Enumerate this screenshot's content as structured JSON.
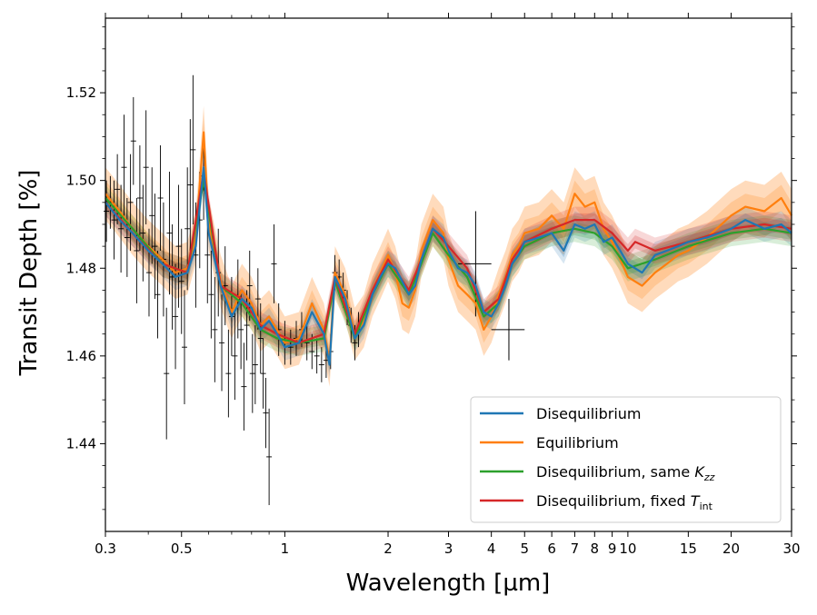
{
  "chart_data": {
    "type": "line",
    "xlabel": "Wavelength [µm]",
    "ylabel": "Transit Depth [%]",
    "xscale": "log",
    "xlim": [
      0.3,
      30
    ],
    "ylim": [
      1.42,
      1.537
    ],
    "x_ticks": [
      {
        "value": 0.3,
        "label": "0.3"
      },
      {
        "value": 0.5,
        "label": "0.5"
      },
      {
        "value": 1,
        "label": "1"
      },
      {
        "value": 2,
        "label": "2"
      },
      {
        "value": 3,
        "label": "3"
      },
      {
        "value": 4,
        "label": "4"
      },
      {
        "value": 5,
        "label": "5"
      },
      {
        "value": 6,
        "label": "6"
      },
      {
        "value": 7,
        "label": "7"
      },
      {
        "value": 8,
        "label": "8"
      },
      {
        "value": 9,
        "label": "9"
      },
      {
        "value": 10,
        "label": "10"
      },
      {
        "value": 15,
        "label": "15"
      },
      {
        "value": 20,
        "label": "20"
      },
      {
        "value": 30,
        "label": "30"
      }
    ],
    "y_ticks": [
      {
        "value": 1.44,
        "label": "1.44"
      },
      {
        "value": 1.46,
        "label": "1.46"
      },
      {
        "value": 1.48,
        "label": "1.48"
      },
      {
        "value": 1.5,
        "label": "1.50"
      },
      {
        "value": 1.52,
        "label": "1.52"
      }
    ],
    "legend": {
      "placement": "lower-right",
      "entries": [
        {
          "label": "Disequilibrium",
          "color": "#1f77b4"
        },
        {
          "label": "Equilibrium",
          "color": "#ff7f0e"
        },
        {
          "label": "Disequilibrium, same ",
          "math": "K",
          "sub": "zz",
          "color": "#2ca02c"
        },
        {
          "label": "Disequilibrium, fixed ",
          "math": "T",
          "sub": "int",
          "color": "#d62728"
        }
      ]
    },
    "series": [
      {
        "name": "Disequilibrium",
        "color": "#1f77b4",
        "band": 0.003,
        "x": [
          0.3,
          0.33,
          0.36,
          0.4,
          0.44,
          0.48,
          0.52,
          0.55,
          0.58,
          0.6,
          0.65,
          0.7,
          0.75,
          0.8,
          0.85,
          0.9,
          0.95,
          1.0,
          1.1,
          1.2,
          1.3,
          1.35,
          1.4,
          1.5,
          1.6,
          1.7,
          1.8,
          1.9,
          2.0,
          2.1,
          2.2,
          2.3,
          2.4,
          2.5,
          2.7,
          2.9,
          3.0,
          3.2,
          3.4,
          3.6,
          3.8,
          4.0,
          4.2,
          4.4,
          4.6,
          4.8,
          5.0,
          5.5,
          6.0,
          6.5,
          7.0,
          7.5,
          8.0,
          8.5,
          9.0,
          9.5,
          10,
          11,
          12,
          13,
          14,
          15,
          17,
          20,
          22,
          25,
          28,
          30
        ],
        "y": [
          1.495,
          1.491,
          1.488,
          1.484,
          1.481,
          1.478,
          1.479,
          1.485,
          1.503,
          1.488,
          1.476,
          1.469,
          1.473,
          1.471,
          1.466,
          1.468,
          1.465,
          1.462,
          1.463,
          1.47,
          1.465,
          1.458,
          1.478,
          1.473,
          1.464,
          1.467,
          1.474,
          1.478,
          1.481,
          1.48,
          1.477,
          1.474,
          1.476,
          1.482,
          1.489,
          1.487,
          1.484,
          1.48,
          1.479,
          1.476,
          1.47,
          1.469,
          1.472,
          1.476,
          1.481,
          1.483,
          1.486,
          1.487,
          1.488,
          1.484,
          1.49,
          1.489,
          1.49,
          1.486,
          1.487,
          1.484,
          1.481,
          1.479,
          1.483,
          1.484,
          1.485,
          1.486,
          1.487,
          1.489,
          1.491,
          1.489,
          1.49,
          1.488
        ]
      },
      {
        "name": "Equilibrium",
        "color": "#ff7f0e",
        "band": 0.006,
        "x": [
          0.3,
          0.33,
          0.36,
          0.4,
          0.44,
          0.48,
          0.52,
          0.55,
          0.58,
          0.6,
          0.65,
          0.7,
          0.75,
          0.8,
          0.85,
          0.9,
          0.95,
          1.0,
          1.1,
          1.2,
          1.3,
          1.35,
          1.4,
          1.5,
          1.6,
          1.7,
          1.8,
          1.9,
          2.0,
          2.1,
          2.2,
          2.3,
          2.4,
          2.5,
          2.7,
          2.9,
          3.0,
          3.2,
          3.4,
          3.6,
          3.8,
          4.0,
          4.2,
          4.4,
          4.6,
          4.8,
          5.0,
          5.5,
          6.0,
          6.5,
          7.0,
          7.5,
          8.0,
          8.5,
          9.0,
          9.5,
          10,
          11,
          12,
          13,
          14,
          15,
          17,
          20,
          22,
          25,
          28,
          30
        ],
        "y": [
          1.497,
          1.493,
          1.489,
          1.485,
          1.482,
          1.479,
          1.48,
          1.487,
          1.511,
          1.49,
          1.477,
          1.47,
          1.475,
          1.472,
          1.467,
          1.469,
          1.466,
          1.463,
          1.464,
          1.472,
          1.466,
          1.459,
          1.479,
          1.474,
          1.465,
          1.468,
          1.475,
          1.479,
          1.483,
          1.479,
          1.472,
          1.471,
          1.475,
          1.484,
          1.491,
          1.488,
          1.482,
          1.476,
          1.474,
          1.472,
          1.466,
          1.469,
          1.474,
          1.478,
          1.483,
          1.485,
          1.488,
          1.489,
          1.492,
          1.489,
          1.497,
          1.494,
          1.495,
          1.489,
          1.486,
          1.482,
          1.478,
          1.476,
          1.479,
          1.481,
          1.483,
          1.484,
          1.487,
          1.492,
          1.494,
          1.493,
          1.496,
          1.492
        ]
      },
      {
        "name": "Disequilibrium, same Kzz",
        "color": "#2ca02c",
        "band": 0.003,
        "x": [
          0.3,
          0.36,
          0.44,
          0.52,
          0.58,
          0.65,
          0.75,
          0.85,
          0.95,
          1.1,
          1.3,
          1.4,
          1.6,
          1.8,
          2.0,
          2.3,
          2.5,
          2.7,
          3.0,
          3.4,
          3.8,
          4.2,
          4.6,
          5.0,
          6.0,
          7.0,
          8.0,
          9.0,
          10,
          12,
          15,
          20,
          25,
          30
        ],
        "y": [
          1.496,
          1.489,
          1.481,
          1.479,
          1.5,
          1.476,
          1.472,
          1.466,
          1.464,
          1.463,
          1.464,
          1.477,
          1.464,
          1.474,
          1.481,
          1.474,
          1.481,
          1.488,
          1.483,
          1.478,
          1.469,
          1.472,
          1.481,
          1.485,
          1.488,
          1.489,
          1.488,
          1.485,
          1.48,
          1.482,
          1.485,
          1.488,
          1.489,
          1.488
        ]
      },
      {
        "name": "Disequilibrium, fixed Tint",
        "color": "#d62728",
        "band": 0.003,
        "x": [
          0.3,
          0.36,
          0.44,
          0.52,
          0.58,
          0.65,
          0.75,
          0.85,
          0.95,
          1.1,
          1.3,
          1.4,
          1.6,
          1.8,
          2.0,
          2.3,
          2.5,
          2.7,
          3.0,
          3.4,
          3.8,
          4.2,
          4.6,
          5.0,
          6.0,
          7.0,
          8.0,
          9.0,
          10,
          10.5,
          12,
          15,
          20,
          25,
          30
        ],
        "y": [
          1.495,
          1.488,
          1.481,
          1.479,
          1.502,
          1.476,
          1.473,
          1.467,
          1.465,
          1.463,
          1.465,
          1.478,
          1.465,
          1.475,
          1.482,
          1.475,
          1.482,
          1.489,
          1.485,
          1.48,
          1.47,
          1.473,
          1.482,
          1.486,
          1.489,
          1.491,
          1.491,
          1.488,
          1.484,
          1.486,
          1.484,
          1.486,
          1.489,
          1.49,
          1.489
        ]
      }
    ],
    "observations": {
      "name": "Data",
      "color": "#000000",
      "points": [
        {
          "x": 0.302,
          "y": 1.493,
          "err": 0.007
        },
        {
          "x": 0.31,
          "y": 1.495,
          "err": 0.006
        },
        {
          "x": 0.318,
          "y": 1.491,
          "err": 0.009
        },
        {
          "x": 0.325,
          "y": 1.498,
          "err": 0.008
        },
        {
          "x": 0.333,
          "y": 1.489,
          "err": 0.01
        },
        {
          "x": 0.34,
          "y": 1.503,
          "err": 0.012
        },
        {
          "x": 0.347,
          "y": 1.487,
          "err": 0.009
        },
        {
          "x": 0.355,
          "y": 1.495,
          "err": 0.011
        },
        {
          "x": 0.362,
          "y": 1.509,
          "err": 0.01
        },
        {
          "x": 0.37,
          "y": 1.484,
          "err": 0.012
        },
        {
          "x": 0.378,
          "y": 1.496,
          "err": 0.012
        },
        {
          "x": 0.386,
          "y": 1.488,
          "err": 0.011
        },
        {
          "x": 0.394,
          "y": 1.503,
          "err": 0.013
        },
        {
          "x": 0.402,
          "y": 1.479,
          "err": 0.01
        },
        {
          "x": 0.41,
          "y": 1.492,
          "err": 0.011
        },
        {
          "x": 0.418,
          "y": 1.485,
          "err": 0.012
        },
        {
          "x": 0.426,
          "y": 1.474,
          "err": 0.01
        },
        {
          "x": 0.434,
          "y": 1.496,
          "err": 0.012
        },
        {
          "x": 0.443,
          "y": 1.482,
          "err": 0.013
        },
        {
          "x": 0.452,
          "y": 1.456,
          "err": 0.015
        },
        {
          "x": 0.461,
          "y": 1.488,
          "err": 0.014
        },
        {
          "x": 0.47,
          "y": 1.478,
          "err": 0.012
        },
        {
          "x": 0.48,
          "y": 1.469,
          "err": 0.012
        },
        {
          "x": 0.49,
          "y": 1.485,
          "err": 0.014
        },
        {
          "x": 0.5,
          "y": 1.477,
          "err": 0.012
        },
        {
          "x": 0.51,
          "y": 1.462,
          "err": 0.013
        },
        {
          "x": 0.52,
          "y": 1.489,
          "err": 0.014
        },
        {
          "x": 0.53,
          "y": 1.499,
          "err": 0.015
        },
        {
          "x": 0.54,
          "y": 1.507,
          "err": 0.017
        },
        {
          "x": 0.55,
          "y": 1.483,
          "err": 0.012
        },
        {
          "x": 0.565,
          "y": 1.491,
          "err": 0.011
        },
        {
          "x": 0.58,
          "y": 1.501,
          "err": 0.01
        },
        {
          "x": 0.595,
          "y": 1.483,
          "err": 0.011
        },
        {
          "x": 0.61,
          "y": 1.474,
          "err": 0.01
        },
        {
          "x": 0.625,
          "y": 1.466,
          "err": 0.012
        },
        {
          "x": 0.64,
          "y": 1.479,
          "err": 0.01
        },
        {
          "x": 0.655,
          "y": 1.463,
          "err": 0.011
        },
        {
          "x": 0.67,
          "y": 1.476,
          "err": 0.009
        },
        {
          "x": 0.685,
          "y": 1.456,
          "err": 0.01
        },
        {
          "x": 0.7,
          "y": 1.469,
          "err": 0.009
        },
        {
          "x": 0.715,
          "y": 1.46,
          "err": 0.01
        },
        {
          "x": 0.73,
          "y": 1.473,
          "err": 0.009
        },
        {
          "x": 0.745,
          "y": 1.466,
          "err": 0.009
        },
        {
          "x": 0.76,
          "y": 1.453,
          "err": 0.01
        },
        {
          "x": 0.775,
          "y": 1.467,
          "err": 0.008
        },
        {
          "x": 0.79,
          "y": 1.476,
          "err": 0.008
        },
        {
          "x": 0.805,
          "y": 1.456,
          "err": 0.009
        },
        {
          "x": 0.82,
          "y": 1.458,
          "err": 0.009
        },
        {
          "x": 0.835,
          "y": 1.473,
          "err": 0.007
        },
        {
          "x": 0.85,
          "y": 1.464,
          "err": 0.008
        },
        {
          "x": 0.865,
          "y": 1.456,
          "err": 0.008
        },
        {
          "x": 0.88,
          "y": 1.447,
          "err": 0.008
        },
        {
          "x": 0.9,
          "y": 1.437,
          "err": 0.011
        },
        {
          "x": 0.93,
          "y": 1.481,
          "err": 0.009
        },
        {
          "x": 0.96,
          "y": 1.466,
          "err": 0.006
        },
        {
          "x": 1.0,
          "y": 1.463,
          "err": 0.005
        },
        {
          "x": 1.04,
          "y": 1.462,
          "err": 0.004
        },
        {
          "x": 1.08,
          "y": 1.464,
          "err": 0.004
        },
        {
          "x": 1.12,
          "y": 1.466,
          "err": 0.004
        },
        {
          "x": 1.16,
          "y": 1.463,
          "err": 0.004
        },
        {
          "x": 1.2,
          "y": 1.461,
          "err": 0.004
        },
        {
          "x": 1.24,
          "y": 1.46,
          "err": 0.004
        },
        {
          "x": 1.28,
          "y": 1.458,
          "err": 0.004
        },
        {
          "x": 1.32,
          "y": 1.459,
          "err": 0.004
        },
        {
          "x": 1.36,
          "y": 1.461,
          "err": 0.004
        },
        {
          "x": 1.4,
          "y": 1.479,
          "err": 0.004
        },
        {
          "x": 1.44,
          "y": 1.478,
          "err": 0.004
        },
        {
          "x": 1.48,
          "y": 1.475,
          "err": 0.004
        },
        {
          "x": 1.52,
          "y": 1.471,
          "err": 0.004
        },
        {
          "x": 1.56,
          "y": 1.467,
          "err": 0.004
        },
        {
          "x": 1.6,
          "y": 1.463,
          "err": 0.004
        },
        {
          "x": 1.64,
          "y": 1.466,
          "err": 0.004
        }
      ],
      "binned": [
        {
          "x": 3.6,
          "y": 1.481,
          "err": 0.012,
          "xlo": 3.2,
          "xhi": 4.0
        },
        {
          "x": 4.5,
          "y": 1.466,
          "err": 0.007,
          "xlo": 4.0,
          "xhi": 5.0
        }
      ]
    }
  }
}
